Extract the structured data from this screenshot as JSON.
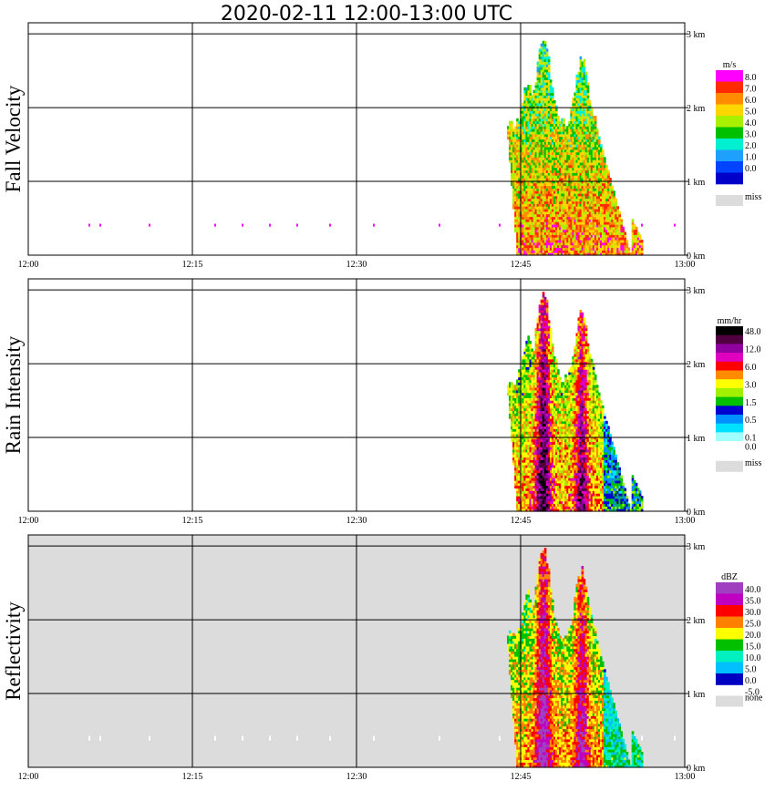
{
  "chart_data": {
    "type": "heatmap",
    "title": "2020-02-11   12:00-13:00 UTC",
    "x_ticks": [
      "12:00",
      "12:15",
      "12:30",
      "12:45",
      "13:00"
    ],
    "x_range_minutes": [
      0,
      60
    ],
    "y_ticks": [
      "0 km",
      "1 km",
      "2 km",
      "3 km"
    ],
    "y_range_km": [
      0,
      3.0
    ],
    "grid": true,
    "panels": [
      {
        "name": "Fall Velocity",
        "unit": "m/s",
        "background": "#ffffff",
        "legend_labels": [
          "8.0",
          "7.0",
          "6.0",
          "5.0",
          "4.0",
          "3.0",
          "2.0",
          "1.0",
          "0.0"
        ],
        "legend_colors": [
          "#ff00ff",
          "#ff2a00",
          "#ff8c00",
          "#ffd700",
          "#a8f000",
          "#00c000",
          "#00f0d0",
          "#1ea0ff",
          "#0044ff",
          "#0000c8"
        ],
        "missing_label": "miss",
        "missing_color": "#dcdcdc"
      },
      {
        "name": "Rain Intensity",
        "unit": "mm/hr",
        "background": "#ffffff",
        "legend_labels": [
          "48.0",
          "12.0",
          "6.0",
          "3.0",
          "1.5",
          "0.5",
          "0.1",
          "0.0"
        ],
        "legend_colors": [
          "#000000",
          "#500040",
          "#9000a0",
          "#e000c0",
          "#ff0000",
          "#ff8c00",
          "#ffff00",
          "#a0f000",
          "#00c000",
          "#0000d0",
          "#0090ff",
          "#00e0ff",
          "#a0ffff",
          "#ffffff"
        ],
        "missing_label": "miss",
        "missing_color": "#dcdcdc"
      },
      {
        "name": "Reflectivity",
        "unit": "dBZ",
        "background": "#dcdcdc",
        "legend_labels": [
          "40.0",
          "35.0",
          "30.0",
          "25.0",
          "20.0",
          "15.0",
          "10.0",
          "5.0",
          "0.0",
          "-5.0"
        ],
        "legend_colors": [
          "#a040c0",
          "#c000c0",
          "#ff0000",
          "#ff8000",
          "#ffff00",
          "#00c000",
          "#00f0c0",
          "#00c0ff",
          "#0000c0"
        ],
        "missing_label": "none",
        "missing_color": "#dcdcdc"
      }
    ],
    "rain_event": {
      "start_minute": 43.5,
      "end_minute": 55.0,
      "echo_top_km_peak": 2.95,
      "main_shafts_minute": [
        47.0,
        50.5
      ]
    }
  }
}
